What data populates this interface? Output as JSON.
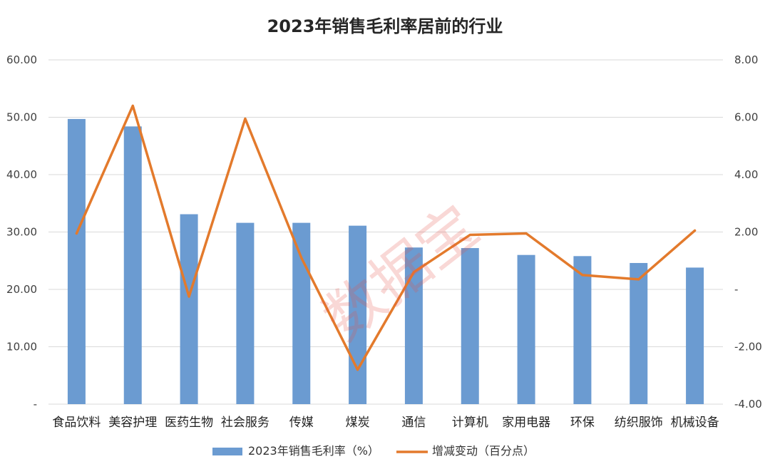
{
  "chart_data": {
    "type": "bar",
    "title": "2023年销售毛利率居前的行业",
    "categories": [
      "食品饮料",
      "美容护理",
      "医药生物",
      "社会服务",
      "传媒",
      "煤炭",
      "通信",
      "计算机",
      "家用电器",
      "环保",
      "纺织服饰",
      "机械设备"
    ],
    "series": [
      {
        "name": "2023年销售毛利率（%）",
        "type": "bar",
        "axis": "left",
        "color": "#6b9bd1",
        "values": [
          49.7,
          48.4,
          33.1,
          31.6,
          31.6,
          31.1,
          27.3,
          27.2,
          26.0,
          25.8,
          24.6,
          23.8
        ]
      },
      {
        "name": "增减变动（百分点）",
        "type": "line",
        "axis": "right",
        "color": "#e37a2c",
        "values": [
          1.95,
          6.4,
          -0.25,
          5.95,
          1.1,
          -2.8,
          0.6,
          1.9,
          1.95,
          0.5,
          0.35,
          2.05
        ]
      }
    ],
    "y_left": {
      "min": 0,
      "max": 60,
      "step": 10,
      "tick_labels": [
        "-",
        "10.00",
        "20.00",
        "30.00",
        "40.00",
        "50.00",
        "60.00"
      ]
    },
    "y_right": {
      "min": -4,
      "max": 8,
      "step": 2,
      "tick_labels": [
        "-4.00",
        "-2.00",
        "-",
        "2.00",
        "4.00",
        "6.00",
        "8.00"
      ]
    },
    "grid": true,
    "legend_position": "bottom"
  },
  "watermark": "数据宝",
  "colors": {
    "bar": "#6b9bd1",
    "line": "#e37a2c",
    "grid": "#d9d9d9"
  }
}
